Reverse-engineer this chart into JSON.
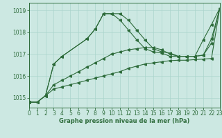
{
  "title": "Graphe pression niveau de la mer (hPa)",
  "bg_color": "#cce8e2",
  "grid_color": "#aad4cc",
  "line_color": "#2d6b3a",
  "xlim": [
    0,
    23
  ],
  "ylim": [
    1014.55,
    1019.35
  ],
  "yticks": [
    1015,
    1016,
    1017,
    1018,
    1019
  ],
  "xticks": [
    0,
    1,
    2,
    3,
    4,
    5,
    6,
    7,
    8,
    9,
    10,
    11,
    12,
    13,
    14,
    15,
    16,
    17,
    18,
    19,
    20,
    21,
    22,
    23
  ],
  "series": [
    {
      "x": [
        0,
        1,
        2,
        3,
        4,
        5,
        6,
        7,
        8,
        9,
        10,
        11,
        12,
        13,
        14,
        15,
        16,
        17,
        18,
        19,
        20,
        21,
        22,
        23
      ],
      "y": [
        1014.8,
        1014.8,
        1015.1,
        1015.4,
        1015.5,
        1015.6,
        1015.7,
        1015.8,
        1015.9,
        1016.0,
        1016.1,
        1016.2,
        1016.35,
        1016.45,
        1016.55,
        1016.6,
        1016.65,
        1016.7,
        1016.72,
        1016.72,
        1016.75,
        1016.77,
        1016.8,
        1019.1
      ]
    },
    {
      "x": [
        0,
        1,
        2,
        3,
        4,
        5,
        6,
        7,
        8,
        9,
        10,
        11,
        12,
        13,
        14,
        15,
        16,
        17,
        18,
        19,
        20,
        21,
        22,
        23
      ],
      "y": [
        1014.8,
        1014.8,
        1015.1,
        1015.6,
        1015.8,
        1016.0,
        1016.2,
        1016.4,
        1016.6,
        1016.8,
        1017.0,
        1017.1,
        1017.2,
        1017.25,
        1017.3,
        1017.3,
        1017.2,
        1017.0,
        1016.9,
        1016.9,
        1016.9,
        1016.95,
        1017.5,
        1019.1
      ]
    },
    {
      "x": [
        0,
        1,
        2,
        3,
        4,
        7,
        8,
        9,
        10,
        11,
        12,
        13,
        14,
        15,
        16,
        17,
        18,
        19,
        20,
        21,
        22,
        23
      ],
      "y": [
        1014.8,
        1014.8,
        1015.1,
        1016.55,
        1016.9,
        1017.7,
        1018.15,
        1018.85,
        1018.85,
        1018.85,
        1018.55,
        1018.1,
        1017.65,
        1017.25,
        1017.1,
        1017.05,
        1016.9,
        1016.9,
        1016.9,
        1016.95,
        1017.7,
        1019.1
      ]
    },
    {
      "x": [
        2,
        3,
        4,
        7,
        8,
        9,
        10,
        11,
        12,
        13,
        14,
        15,
        16,
        17,
        18,
        19,
        20,
        21,
        22,
        23
      ],
      "y": [
        1015.1,
        1016.55,
        1016.9,
        1017.7,
        1018.15,
        1018.85,
        1018.85,
        1018.55,
        1018.1,
        1017.65,
        1017.25,
        1017.1,
        1017.05,
        1016.9,
        1016.9,
        1016.9,
        1016.9,
        1017.65,
        1018.35,
        1019.1
      ]
    }
  ]
}
